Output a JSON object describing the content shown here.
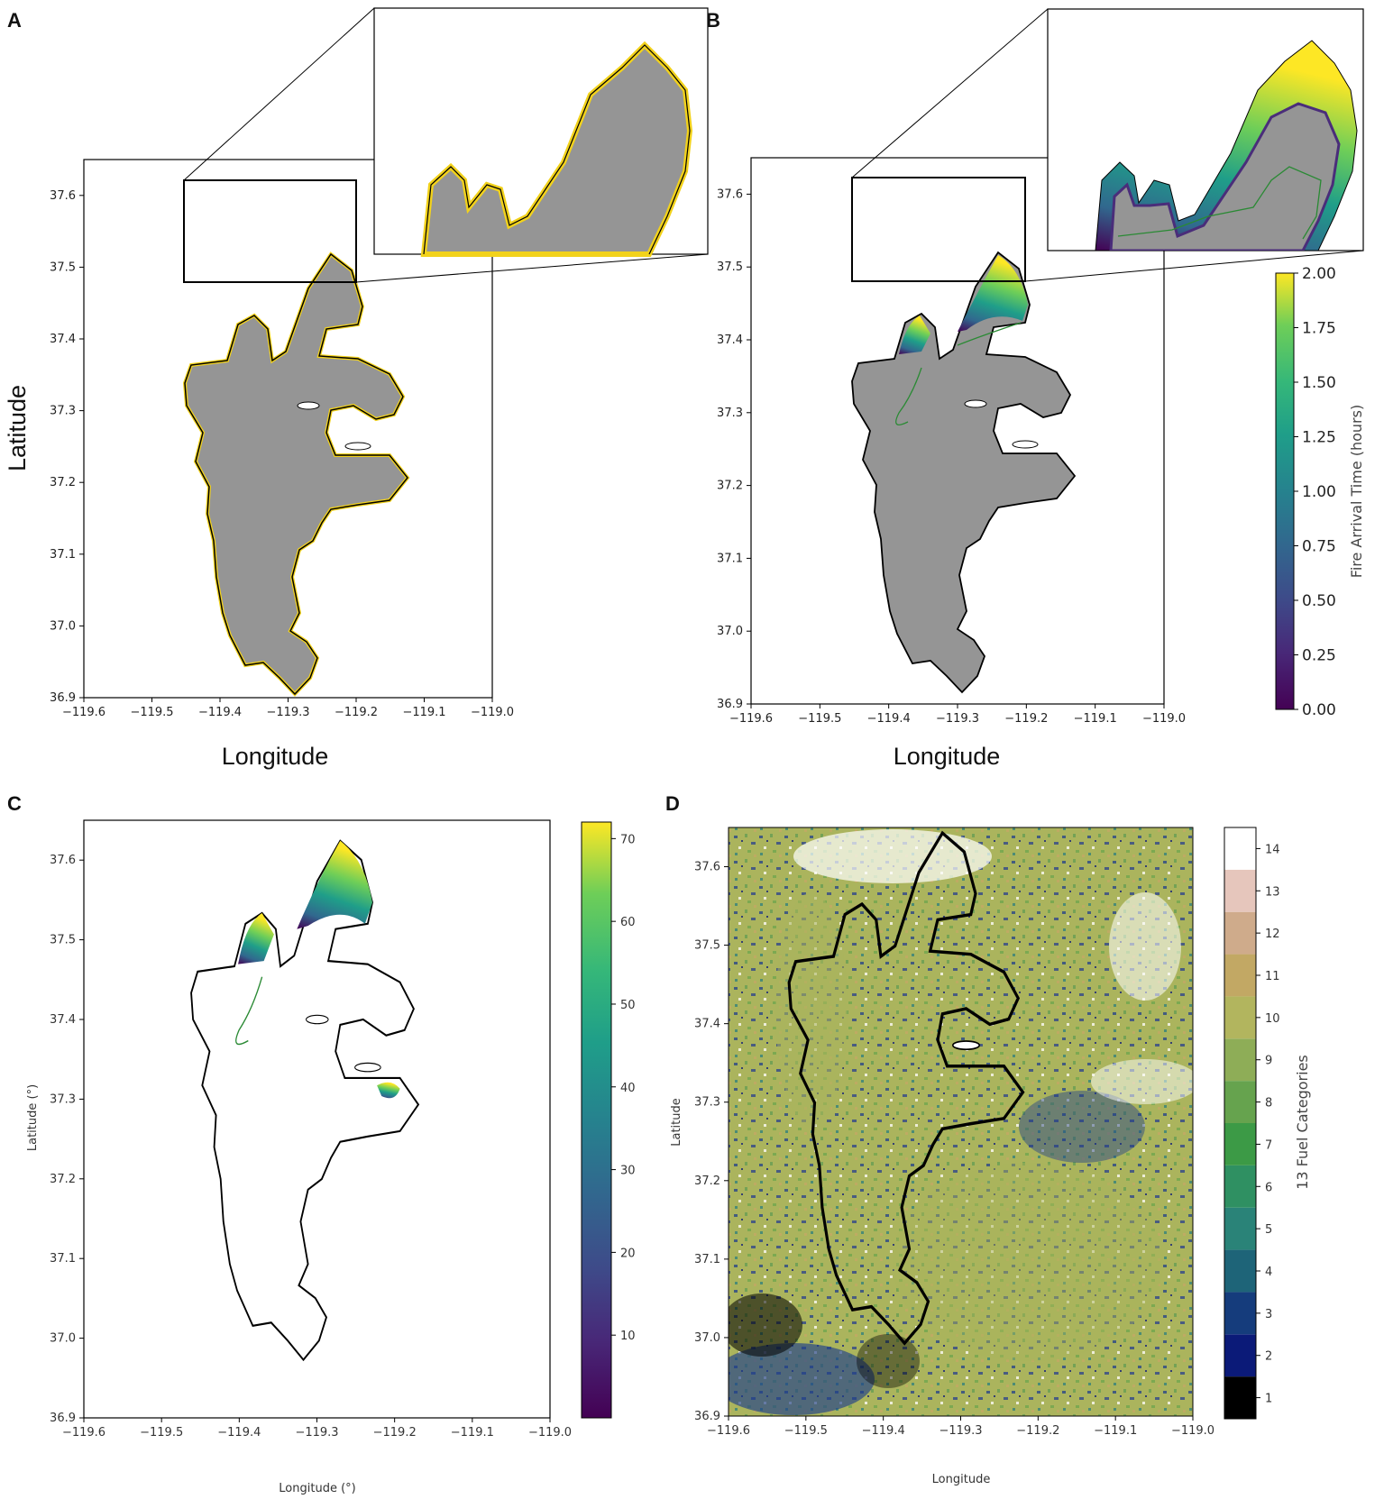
{
  "chart_data": [
    {
      "id": "A",
      "type": "map",
      "panel_label": "A",
      "title": "",
      "xlabel": "Longitude",
      "ylabel": "Latitude",
      "xlim": [
        -119.6,
        -119.0
      ],
      "ylim": [
        36.9,
        37.65
      ],
      "x_ticks": [
        "−119.6",
        "−119.5",
        "−119.4",
        "−119.3",
        "−119.2",
        "−119.1",
        "−119.0"
      ],
      "y_ticks": [
        "36.9",
        "37.0",
        "37.1",
        "37.2",
        "37.3",
        "37.4",
        "37.5",
        "37.6"
      ],
      "fill_color": "#959595",
      "edge_color": "#f2d21b",
      "inset_region": {
        "lon": [
          -119.45,
          -119.2
        ],
        "lat": [
          37.48,
          37.62
        ]
      }
    },
    {
      "id": "B",
      "type": "map",
      "panel_label": "B",
      "title": "",
      "xlabel": "Longitude",
      "ylabel": "",
      "xlim": [
        -119.6,
        -119.0
      ],
      "ylim": [
        36.9,
        37.65
      ],
      "x_ticks": [
        "−119.6",
        "−119.5",
        "−119.4",
        "−119.3",
        "−119.2",
        "−119.1",
        "−119.0"
      ],
      "y_ticks": [
        "36.9",
        "37.0",
        "37.1",
        "37.2",
        "37.3",
        "37.4",
        "37.5",
        "37.6"
      ],
      "colorbar": {
        "label": "Fire Arrival Time (hours)",
        "range": [
          0.0,
          2.0
        ],
        "ticks": [
          "0.00",
          "0.25",
          "0.50",
          "0.75",
          "1.00",
          "1.25",
          "1.50",
          "1.75",
          "2.00"
        ],
        "colormap": "viridis"
      },
      "inset_region": {
        "lon": [
          -119.45,
          -119.2
        ],
        "lat": [
          37.48,
          37.62
        ]
      }
    },
    {
      "id": "C",
      "type": "map",
      "panel_label": "C",
      "title": "",
      "xlabel": "Longitude (°)",
      "ylabel": "Latitude (°)",
      "xlim": [
        -119.6,
        -119.0
      ],
      "ylim": [
        36.9,
        37.65
      ],
      "x_ticks": [
        "−119.6",
        "−119.5",
        "−119.4",
        "−119.3",
        "−119.2",
        "−119.1",
        "−119.0"
      ],
      "y_ticks": [
        "36.9",
        "37.0",
        "37.1",
        "37.2",
        "37.3",
        "37.4",
        "37.5",
        "37.6"
      ],
      "colorbar": {
        "label": "",
        "range": [
          0,
          72
        ],
        "ticks": [
          "10",
          "20",
          "30",
          "40",
          "50",
          "60",
          "70"
        ],
        "colormap": "viridis"
      }
    },
    {
      "id": "D",
      "type": "map",
      "panel_label": "D",
      "title": "",
      "xlabel": "Longitude",
      "ylabel": "Latitude",
      "xlim": [
        -119.6,
        -119.0
      ],
      "ylim": [
        36.9,
        37.65
      ],
      "x_ticks": [
        "−119.6",
        "−119.5",
        "−119.4",
        "−119.3",
        "−119.2",
        "−119.1",
        "−119.0"
      ],
      "y_ticks": [
        "36.9",
        "37.0",
        "37.1",
        "37.2",
        "37.3",
        "37.4",
        "37.5",
        "37.6"
      ],
      "colorbar": {
        "label": "13 Fuel Categories",
        "categories": [
          "1",
          "2",
          "3",
          "4",
          "5",
          "6",
          "7",
          "8",
          "9",
          "10",
          "11",
          "12",
          "13",
          "14"
        ],
        "colors": [
          "#000000",
          "#0b1a78",
          "#153c7c",
          "#1e6478",
          "#2a8378",
          "#2f9062",
          "#3c9a46",
          "#66a34e",
          "#8ead57",
          "#b2b55e",
          "#c2a864",
          "#cfab8b",
          "#e6c6bc",
          "#ffffff"
        ]
      }
    }
  ]
}
